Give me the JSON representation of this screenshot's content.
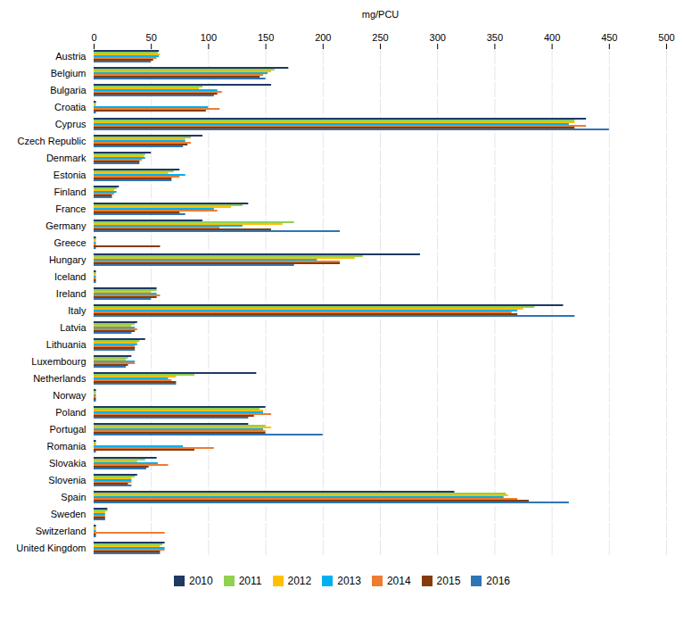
{
  "chart_data": {
    "type": "bar",
    "orientation": "horizontal",
    "xlabel": "mg/PCU",
    "categories": [
      "Austria",
      "Belgium",
      "Bulgaria",
      "Croatia",
      "Cyprus",
      "Czech Republic",
      "Denmark",
      "Estonia",
      "Finland",
      "France",
      "Germany",
      "Greece",
      "Hungary",
      "Iceland",
      "Ireland",
      "Italy",
      "Latvia",
      "Lithuania",
      "Luxembourg",
      "Netherlands",
      "Norway",
      "Poland",
      "Portugal",
      "Romania",
      "Slovakia",
      "Slovenia",
      "Spain",
      "Sweden",
      "Switzerland",
      "United Kingdom"
    ],
    "series": [
      {
        "name": "2010",
        "color": "#1f3864",
        "values": [
          57,
          170,
          155,
          2,
          430,
          95,
          50,
          75,
          22,
          135,
          95,
          2,
          285,
          2,
          55,
          410,
          38,
          45,
          33,
          142,
          2,
          150,
          135,
          2,
          55,
          38,
          315,
          12,
          2,
          62
        ]
      },
      {
        "name": "2011",
        "color": "#92d050",
        "values": [
          56,
          158,
          95,
          2,
          420,
          85,
          45,
          70,
          20,
          130,
          175,
          2,
          235,
          2,
          55,
          385,
          36,
          40,
          30,
          88,
          2,
          145,
          150,
          2,
          45,
          36,
          360,
          12,
          2,
          60
        ]
      },
      {
        "name": "2012",
        "color": "#ffc000",
        "values": [
          58,
          155,
          92,
          2,
          420,
          80,
          44,
          65,
          18,
          120,
          165,
          2,
          228,
          2,
          50,
          375,
          33,
          38,
          28,
          72,
          2,
          148,
          155,
          2,
          38,
          33,
          362,
          10,
          2,
          58
        ]
      },
      {
        "name": "2013",
        "color": "#00b0f0",
        "values": [
          57,
          152,
          108,
          100,
          415,
          80,
          45,
          80,
          20,
          105,
          130,
          2,
          195,
          2,
          55,
          370,
          36,
          38,
          36,
          65,
          2,
          148,
          148,
          78,
          56,
          33,
          358,
          10,
          2,
          62
        ]
      },
      {
        "name": "2014",
        "color": "#ed7d31",
        "values": [
          55,
          148,
          112,
          110,
          430,
          85,
          42,
          75,
          18,
          108,
          110,
          2,
          215,
          2,
          58,
          365,
          38,
          36,
          36,
          68,
          2,
          155,
          150,
          105,
          65,
          33,
          370,
          10,
          62,
          62
        ]
      },
      {
        "name": "2015",
        "color": "#843c0c",
        "values": [
          52,
          145,
          108,
          98,
          420,
          82,
          40,
          68,
          16,
          75,
          155,
          58,
          215,
          2,
          55,
          370,
          36,
          36,
          30,
          72,
          2,
          140,
          150,
          88,
          48,
          30,
          380,
          10,
          2,
          58
        ]
      },
      {
        "name": "2016",
        "color": "#2e75b6",
        "values": [
          50,
          150,
          105,
          2,
          450,
          78,
          40,
          68,
          16,
          80,
          215,
          2,
          175,
          2,
          50,
          420,
          33,
          36,
          28,
          72,
          2,
          135,
          200,
          2,
          46,
          33,
          415,
          10,
          2,
          58
        ]
      }
    ],
    "xlim": [
      0,
      500
    ],
    "xticks": [
      0,
      50,
      100,
      150,
      200,
      250,
      300,
      350,
      400,
      450,
      500
    ],
    "grid": true,
    "legend": "bottom"
  }
}
